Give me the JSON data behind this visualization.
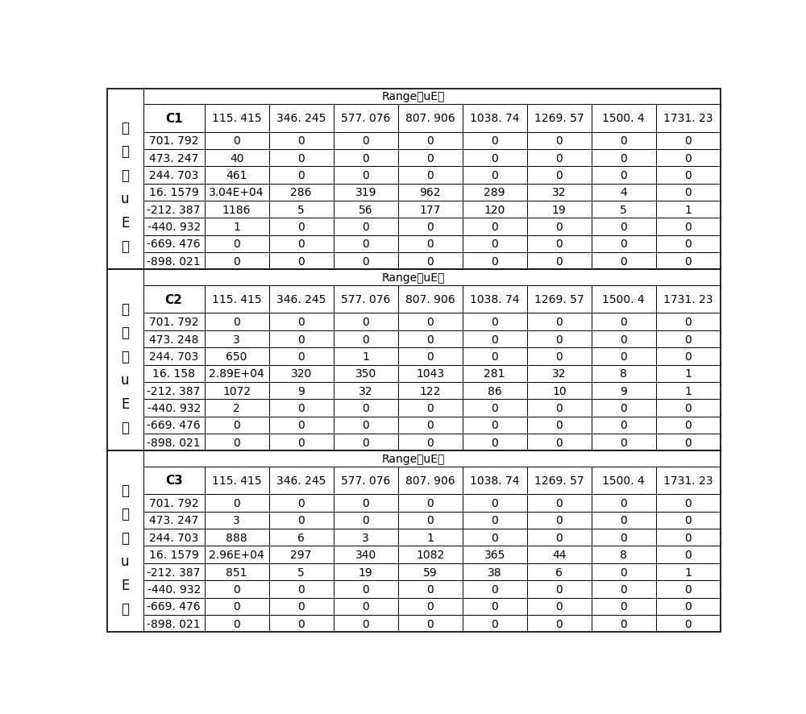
{
  "tables": [
    {
      "channel": "C1",
      "range_cols": [
        "115. 415",
        "346. 245",
        "577. 076",
        "807. 906",
        "1038. 74",
        "1269. 57",
        "1500. 4",
        "1731. 23"
      ],
      "mean_rows": [
        "701. 792",
        "473. 247",
        "244. 703",
        "16. 1579",
        "-212. 387",
        "-440. 932",
        "-669. 476",
        "-898. 021"
      ],
      "data": [
        [
          "0",
          "0",
          "0",
          "0",
          "0",
          "0",
          "0",
          "0"
        ],
        [
          "40",
          "0",
          "0",
          "0",
          "0",
          "0",
          "0",
          "0"
        ],
        [
          "461",
          "0",
          "0",
          "0",
          "0",
          "0",
          "0",
          "0"
        ],
        [
          "3.04E+04",
          "286",
          "319",
          "962",
          "289",
          "32",
          "4",
          "0"
        ],
        [
          "1186",
          "5",
          "56",
          "177",
          "120",
          "19",
          "5",
          "1"
        ],
        [
          "1",
          "0",
          "0",
          "0",
          "0",
          "0",
          "0",
          "0"
        ],
        [
          "0",
          "0",
          "0",
          "0",
          "0",
          "0",
          "0",
          "0"
        ],
        [
          "0",
          "0",
          "0",
          "0",
          "0",
          "0",
          "0",
          "0"
        ]
      ]
    },
    {
      "channel": "C2",
      "range_cols": [
        "115. 415",
        "346. 245",
        "577. 076",
        "807. 906",
        "1038. 74",
        "1269. 57",
        "1500. 4",
        "1731. 23"
      ],
      "mean_rows": [
        "701. 792",
        "473. 248",
        "244. 703",
        "16. 158",
        "-212. 387",
        "-440. 932",
        "-669. 476",
        "-898. 021"
      ],
      "data": [
        [
          "0",
          "0",
          "0",
          "0",
          "0",
          "0",
          "0",
          "0"
        ],
        [
          "3",
          "0",
          "0",
          "0",
          "0",
          "0",
          "0",
          "0"
        ],
        [
          "650",
          "0",
          "1",
          "0",
          "0",
          "0",
          "0",
          "0"
        ],
        [
          "2.89E+04",
          "320",
          "350",
          "1043",
          "281",
          "32",
          "8",
          "1"
        ],
        [
          "1072",
          "9",
          "32",
          "122",
          "86",
          "10",
          "9",
          "1"
        ],
        [
          "2",
          "0",
          "0",
          "0",
          "0",
          "0",
          "0",
          "0"
        ],
        [
          "0",
          "0",
          "0",
          "0",
          "0",
          "0",
          "0",
          "0"
        ],
        [
          "0",
          "0",
          "0",
          "0",
          "0",
          "0",
          "0",
          "0"
        ]
      ]
    },
    {
      "channel": "C3",
      "range_cols": [
        "115. 415",
        "346. 245",
        "577. 076",
        "807. 906",
        "1038. 74",
        "1269. 57",
        "1500. 4",
        "1731. 23"
      ],
      "mean_rows": [
        "701. 792",
        "473. 247",
        "244. 703",
        "16. 1579",
        "-212. 387",
        "-440. 932",
        "-669. 476",
        "-898. 021"
      ],
      "data": [
        [
          "0",
          "0",
          "0",
          "0",
          "0",
          "0",
          "0",
          "0"
        ],
        [
          "3",
          "0",
          "0",
          "0",
          "0",
          "0",
          "0",
          "0"
        ],
        [
          "888",
          "6",
          "3",
          "1",
          "0",
          "0",
          "0",
          "0"
        ],
        [
          "2.96E+04",
          "297",
          "340",
          "1082",
          "365",
          "44",
          "8",
          "0"
        ],
        [
          "851",
          "5",
          "19",
          "59",
          "38",
          "6",
          "0",
          "1"
        ],
        [
          "0",
          "0",
          "0",
          "0",
          "0",
          "0",
          "0",
          "0"
        ],
        [
          "0",
          "0",
          "0",
          "0",
          "0",
          "0",
          "0",
          "0"
        ],
        [
          "0",
          "0",
          "0",
          "0",
          "0",
          "0",
          "0",
          "0"
        ]
      ]
    }
  ],
  "range_header_text": "Range（uE）",
  "vert_label_lines": [
    "均",
    "値",
    "（",
    "u",
    "E",
    "）"
  ],
  "bg_color": "#ffffff",
  "border_color": "#000000",
  "font_size": 10,
  "header_font_size": 11,
  "range_font_size": 10,
  "vert_font_size": 12
}
